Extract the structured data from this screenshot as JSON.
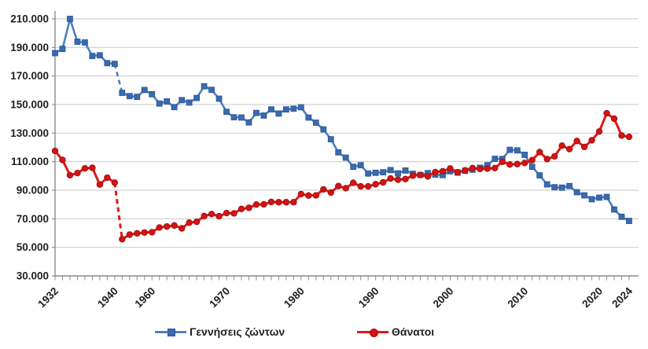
{
  "chart": {
    "background": "#ffffff",
    "grid_color": "#c9c9c9",
    "axis_color": "#8c8c8c",
    "text_color": "#1f1f1f",
    "legend": {
      "births": {
        "label": "Γεννήσεις ζώντων",
        "line_color": "#4f81bd",
        "marker_color": "#3a6bb0",
        "marker": "square"
      },
      "deaths": {
        "label": "Θάνατοι",
        "line_color": "#e01818",
        "marker_color": "#d31414",
        "marker": "circle"
      }
    }
  },
  "chart_data": {
    "type": "line",
    "title": "",
    "xlabel": "",
    "ylabel": "",
    "ylim": [
      30000,
      210000
    ],
    "y_tick_step": 20000,
    "y_tick_labels": [
      "30.000",
      "50.000",
      "70.000",
      "90.000",
      "110.000",
      "130.000",
      "150.000",
      "170.000",
      "190.000",
      "210.000"
    ],
    "x_tick_labeled_years": [
      1932,
      1940,
      1960,
      1970,
      1980,
      1990,
      2000,
      2010,
      2020,
      2024
    ],
    "grid": true,
    "legend_position": "bottom",
    "data_gap": {
      "after_year": 1940,
      "resumes_year": 1956,
      "rendered_as": "dashed-connector"
    },
    "x": [
      1932,
      1933,
      1934,
      1935,
      1936,
      1937,
      1938,
      1939,
      1940,
      1956,
      1957,
      1958,
      1959,
      1960,
      1961,
      1962,
      1963,
      1964,
      1965,
      1966,
      1967,
      1968,
      1969,
      1970,
      1971,
      1972,
      1973,
      1974,
      1975,
      1976,
      1977,
      1978,
      1979,
      1980,
      1981,
      1982,
      1983,
      1984,
      1985,
      1986,
      1987,
      1988,
      1989,
      1990,
      1991,
      1992,
      1993,
      1994,
      1995,
      1996,
      1997,
      1998,
      1999,
      2000,
      2001,
      2002,
      2003,
      2004,
      2005,
      2006,
      2007,
      2008,
      2009,
      2010,
      2011,
      2012,
      2013,
      2014,
      2015,
      2016,
      2017,
      2018,
      2019,
      2020,
      2021,
      2022,
      2023,
      2024
    ],
    "series": [
      {
        "name": "Γεννήσεις ζώντων",
        "color": "#4f81bd",
        "marker": "square",
        "values": [
          186000,
          189000,
          210000,
          194000,
          193500,
          184000,
          184500,
          179000,
          178500,
          158200,
          155900,
          155400,
          160200,
          157200,
          150700,
          152200,
          148200,
          153100,
          151400,
          154600,
          162800,
          160300,
          154100,
          144900,
          141100,
          140900,
          137500,
          144100,
          142300,
          146600,
          143700,
          146600,
          147100,
          148100,
          140900,
          137300,
          132600,
          125700,
          116500,
          112800,
          106400,
          107500,
          101700,
          102200,
          102600,
          104100,
          101800,
          103800,
          101500,
          100700,
          102000,
          100900,
          100600,
          103300,
          102300,
          103600,
          104400,
          105700,
          107500,
          112000,
          111900,
          118300,
          117900,
          114800,
          106400,
          100400,
          94100,
          92100,
          91800,
          92900,
          88600,
          86400,
          83700,
          84800,
          85300,
          76500,
          71400,
          68500
        ]
      },
      {
        "name": "Θάνατοι",
        "color": "#e01818",
        "marker": "circle",
        "values": [
          117500,
          111200,
          100500,
          102000,
          105300,
          105700,
          94000,
          98800,
          95300,
          55700,
          58900,
          59800,
          60400,
          60600,
          63900,
          64600,
          65300,
          63300,
          67300,
          67900,
          71900,
          73300,
          71800,
          74000,
          73800,
          76900,
          77700,
          80000,
          80100,
          81800,
          81600,
          81600,
          81600,
          87300,
          86300,
          86400,
          90600,
          88400,
          92900,
          91400,
          95200,
          92700,
          92700,
          94200,
          95500,
          98200,
          97400,
          97800,
          100200,
          100700,
          99700,
          102700,
          103300,
          105200,
          102600,
          103900,
          105500,
          104900,
          105100,
          105500,
          109900,
          108000,
          108300,
          109100,
          111100,
          116700,
          111800,
          113700,
          121200,
          118800,
          124500,
          120300,
          125000,
          131100,
          143900,
          140100,
          128300,
          127400
        ]
      }
    ]
  }
}
